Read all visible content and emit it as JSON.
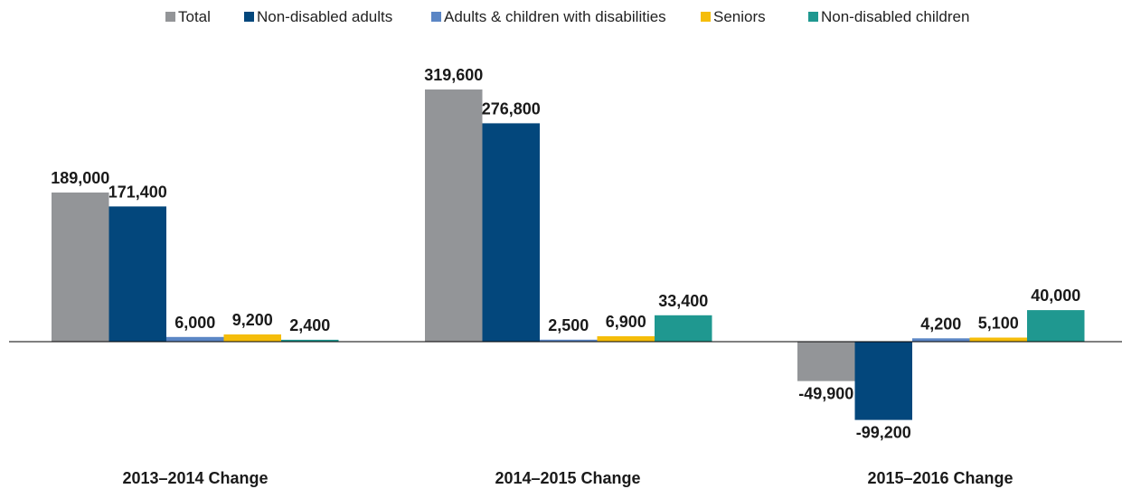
{
  "chart_data": {
    "type": "bar",
    "categories": [
      "2013–2014 Change",
      "2014–2015 Change",
      "2015–2016 Change"
    ],
    "series": [
      {
        "name": "Total",
        "color": "#939598",
        "values": [
          189000,
          319600,
          -49900
        ],
        "labels": [
          "189,000",
          "319,600",
          "-49,900"
        ]
      },
      {
        "name": "Non-disabled adults",
        "color": "#03477c",
        "values": [
          171400,
          276800,
          -99200
        ],
        "labels": [
          "171,400",
          "276,800",
          "-99,200"
        ]
      },
      {
        "name": "Adults & children with disabilities",
        "color": "#5b86c5",
        "values": [
          6000,
          2500,
          4200
        ],
        "labels": [
          "6,000",
          "2,500",
          "4,200"
        ]
      },
      {
        "name": "Seniors",
        "color": "#f5bd0a",
        "values": [
          9200,
          6900,
          5100
        ],
        "labels": [
          "9,200",
          "6,900",
          "5,100"
        ]
      },
      {
        "name": "Non-disabled children",
        "color": "#1f9890",
        "values": [
          2400,
          33400,
          40000
        ],
        "labels": [
          "2,400",
          "33,400",
          "40,000"
        ]
      }
    ],
    "legend": "top",
    "grid": false,
    "ylim": [
      -99200,
      319600
    ]
  }
}
